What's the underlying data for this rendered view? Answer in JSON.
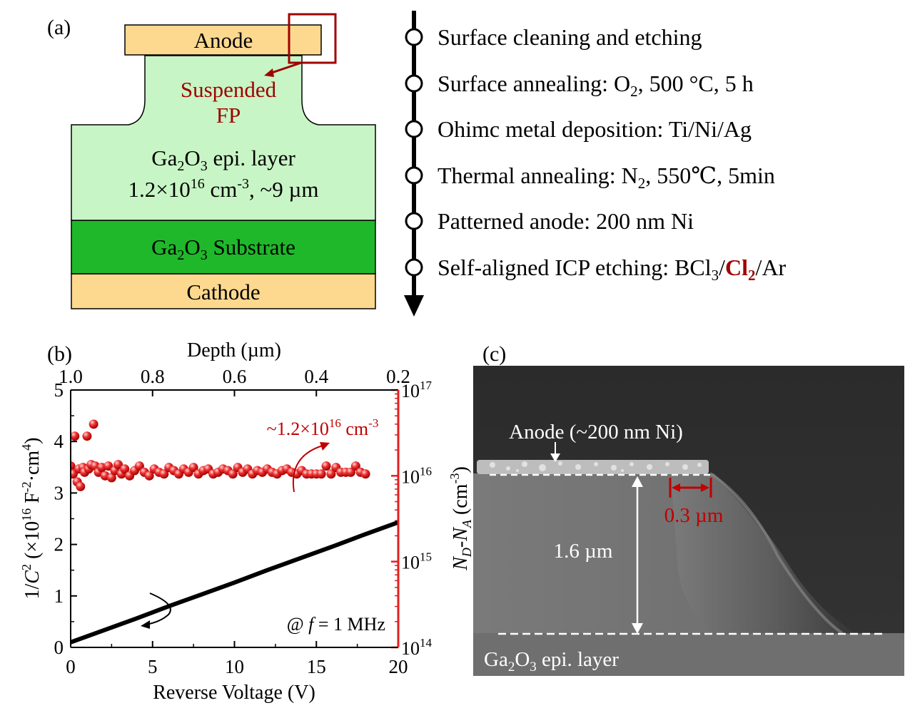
{
  "panel_a": {
    "label": "(a)",
    "anode": "Anode",
    "suspended_line1": "Suspended",
    "suspended_line2": "FP",
    "epi_line1_pre": "Ga",
    "epi_line1_sub1": "2",
    "epi_line1_mid": "O",
    "epi_line1_sub2": "3",
    "epi_line1_post": " epi. layer",
    "epi_line2_pre": "1.2×10",
    "epi_line2_sup": "16",
    "epi_line2_mid": " cm",
    "epi_line2_sup2": "-3",
    "epi_line2_post": ", ~9 µm",
    "substrate_pre": "Ga",
    "substrate_sub1": "2",
    "substrate_mid": "O",
    "substrate_sub2": "3",
    "substrate_post": " Substrate",
    "cathode": "Cathode",
    "colors": {
      "anode": "#fcd98f",
      "epi": "#c8f5c5",
      "substrate": "#1fb82a",
      "cathode": "#fcd98f",
      "marker": "#a00000"
    }
  },
  "process_flow": {
    "step1": "Surface cleaning and etching",
    "step2_pre": "Surface annealing: O",
    "step2_sub": "2",
    "step2_post": ", 500 °C, 5 h",
    "step3": "Ohimc metal deposition: Ti/Ni/Ag",
    "step4_pre": "Thermal annealing: N",
    "step4_sub": "2",
    "step4_post": ", 550℃, 5min",
    "step5": "Patterned anode: 200 nm Ni",
    "step6_pre": "Self-aligned ICP etching: BCl",
    "step6_sub": "3",
    "step6_slash": "/",
    "step6_cl": "Cl",
    "step6_cl_sub": "2",
    "step6_post": "/Ar"
  },
  "panel_b": {
    "label": "(b)",
    "top_axis_title_pre": "Depth (",
    "top_axis_title_mu": "µ",
    "top_axis_title_post": "m)",
    "annotation_pre": "~1.2×10",
    "annotation_sup": "16",
    "annotation_mid": " cm",
    "annotation_sup2": "-3",
    "freq_pre": "@ ",
    "freq_f": "f",
    "freq_post": " = 1 MHz",
    "ylabel_left_pre": "1/",
    "ylabel_left_c": "C",
    "ylabel_left_sup": "2",
    "ylabel_left_mid": " (×10",
    "ylabel_left_sup2": "16",
    "ylabel_left_mid2": " F",
    "ylabel_left_sup3": "-2",
    "ylabel_left_mid3": "·cm",
    "ylabel_left_sup4": "4",
    "ylabel_left_post": ")",
    "ylabel_right_nd": "N",
    "ylabel_right_nd_sub": "D",
    "ylabel_right_dash": "-",
    "ylabel_right_na": "N",
    "ylabel_right_na_sub": "A",
    "ylabel_right_post": " (cm",
    "ylabel_right_sup": "-3",
    "ylabel_right_close": ")",
    "xlabel": "Reverse Voltage (V)",
    "x_ticks": [
      "0",
      "5",
      "10",
      "15",
      "20"
    ],
    "y_left_ticks": [
      "0",
      "1",
      "2",
      "3",
      "4",
      "5"
    ],
    "top_ticks": [
      "1.0",
      "0.8",
      "0.6",
      "0.4",
      "0.2"
    ],
    "y_right_ticks": [
      {
        "base": "10",
        "exp": "14"
      },
      {
        "base": "10",
        "exp": "15"
      },
      {
        "base": "10",
        "exp": "16"
      },
      {
        "base": "10",
        "exp": "17"
      }
    ]
  },
  "chart_data": {
    "type": "line+scatter",
    "x_range": [
      0,
      20
    ],
    "y_left_range": [
      0,
      5
    ],
    "y_right_range_log": [
      100000000000000.0,
      1e+17
    ],
    "top_x_range": [
      1.0,
      0.2
    ],
    "series": [
      {
        "axis": "left",
        "x": [
          0,
          2,
          4,
          6,
          8,
          10,
          12,
          14,
          16,
          18,
          20
        ],
        "y": [
          0.1,
          0.33,
          0.56,
          0.8,
          1.03,
          1.26,
          1.5,
          1.73,
          1.96,
          2.2,
          2.43
        ]
      },
      {
        "axis": "right",
        "x": [
          0.0,
          0.15,
          0.25,
          0.4,
          0.5,
          0.6,
          0.75,
          0.85,
          1.0,
          1.1,
          1.25,
          1.4,
          1.5,
          1.7,
          1.9,
          2.1,
          2.3,
          2.5,
          2.7,
          2.9,
          3.1,
          3.3,
          3.6,
          3.9,
          4.2,
          4.5,
          4.8,
          5.1,
          5.4,
          5.7,
          6.0,
          6.3,
          6.6,
          6.9,
          7.2,
          7.5,
          7.8,
          8.1,
          8.4,
          8.7,
          9.0,
          9.3,
          9.6,
          9.9,
          10.2,
          10.5,
          10.8,
          11.1,
          11.4,
          11.7,
          12.0,
          12.3,
          12.6,
          12.9,
          13.2,
          13.5,
          13.8,
          14.1,
          14.4,
          14.7,
          15.0,
          15.3,
          15.6,
          15.9,
          16.2,
          16.5,
          16.8,
          17.1,
          17.4,
          17.7,
          18.0
        ],
        "y": [
          1.3e+16,
          1.05e+16,
          2.9e+16,
          8500000000000000.0,
          1.2e+16,
          7500000000000000.0,
          1.25e+16,
          1.1e+16,
          2.9e+16,
          1.2e+16,
          1.35e+16,
          4e+16,
          1.3e+16,
          1.1e+16,
          1.25e+16,
          1e+16,
          1.3e+16,
          9500000000000000.0,
          1.15e+16,
          1.35e+16,
          1.05e+16,
          1.2e+16,
          1e+16,
          1.15e+16,
          1.3e+16,
          1.1e+16,
          1e+16,
          1.2e+16,
          1.1e+16,
          1.05e+16,
          1.25e+16,
          1.15e+16,
          1.05e+16,
          1.2e+16,
          1.1e+16,
          1.25e+16,
          1.05e+16,
          1.15e+16,
          1.2e+16,
          1.05e+16,
          1.1e+16,
          1.2e+16,
          1.15e+16,
          1.05e+16,
          1.25e+16,
          1.1e+16,
          1.2e+16,
          1.05e+16,
          1.15e+16,
          1.1e+16,
          1.2e+16,
          1.1e+16,
          1.05e+16,
          1.15e+16,
          1.2e+16,
          1.1e+16,
          1.05e+16,
          1.15e+16,
          1.05e+16,
          1.05e+16,
          1.05e+16,
          1.05e+16,
          1.3e+16,
          1.05e+16,
          1.25e+16,
          1.1e+16,
          1.1e+16,
          1.1e+16,
          1.3e+16,
          1.1e+16,
          1.05e+16
        ]
      }
    ],
    "colors": {
      "line": "#000000",
      "scatter": "#e02020",
      "right_axis": "#e02020"
    }
  },
  "panel_c": {
    "label": "(c)",
    "anode_label": "Anode (~200 nm Ni)",
    "width_label": "0.3 µm",
    "height_label": "1.6 µm",
    "epi_pre": "Ga",
    "epi_sub1": "2",
    "epi_mid": "O",
    "epi_sub2": "3",
    "epi_post": " epi. layer"
  }
}
